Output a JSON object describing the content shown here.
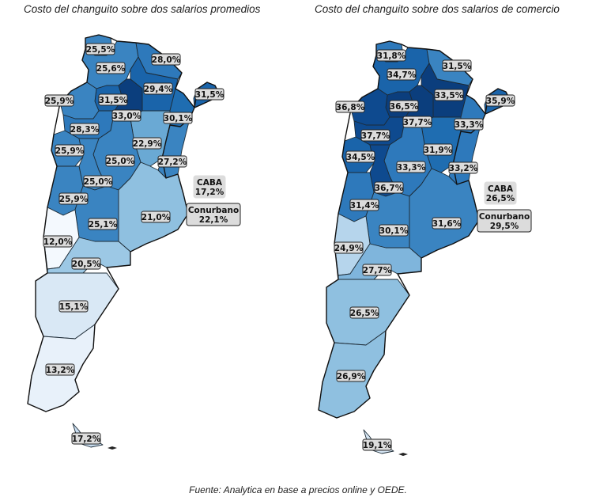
{
  "maps": [
    {
      "title": "Costo del changuito sobre dos salarios promedios",
      "labels": {
        "jujuy": "25,5%",
        "salta": "25,6%",
        "formosa": "28,0%",
        "chaco": "29,4%",
        "misiones": "31,5%",
        "tucuman": "31,5%",
        "santiago": "33,0%",
        "corrientes": "30,1%",
        "catamarca": "25,9%",
        "larioja": "28,3%",
        "sanjuan": "25,9%",
        "santafe": "22,9%",
        "cordoba": "25,0%",
        "entrerios": "27,2%",
        "sanluis": "25,0%",
        "mendoza": "25,9%",
        "lapampa": "25,1%",
        "buenosaires": "21,0%",
        "neuquen": "12,0%",
        "rionegro": "20,5%",
        "chubut": "15,1%",
        "santacruz": "13,2%",
        "tierradelfuego": "17,2%",
        "caba": "CABA\n17,2%",
        "conurbano": "Conurbano\n22,1%"
      },
      "colors": {
        "jujuy": "#3a84c1",
        "salta": "#3a84c1",
        "formosa": "#2e79bb",
        "chaco": "#1a64aa",
        "misiones": "#1a64aa",
        "tucuman": "#1a64aa",
        "santiago": "#0b3e7d",
        "corrientes": "#1f6db1",
        "catamarca": "#3a84c1",
        "larioja": "#2e79bb",
        "sanjuan": "#3a84c1",
        "santafe": "#6aa9d4",
        "cordoba": "#3a84c1",
        "entrerios": "#3a84c1",
        "sanluis": "#3a84c1",
        "mendoza": "#3a84c1",
        "lapampa": "#3a84c1",
        "buenosaires": "#8fc0e0",
        "neuquen": "#f4f9fe",
        "rionegro": "#9cc8e5",
        "chubut": "#d9e8f5",
        "santacruz": "#e8f1fa",
        "tierradelfuego": "#c9ddf0"
      }
    },
    {
      "title": "Costo del changuito sobre dos salarios de comercio",
      "labels": {
        "jujuy": "31,8%",
        "salta": "34,7%",
        "formosa": "31,5%",
        "chaco": "33,5%",
        "misiones": "35,9%",
        "tucuman": "36,5%",
        "santiago": "37,7%",
        "corrientes": "33,3%",
        "catamarca": "36,8%",
        "larioja": "37,7%",
        "sanjuan": "34,5%",
        "santafe": "31,9%",
        "cordoba": "33,3%",
        "entrerios": "33,2%",
        "sanluis": "36,7%",
        "mendoza": "31,4%",
        "lapampa": "30,1%",
        "buenosaires": "31,6%",
        "neuquen": "24,9%",
        "rionegro": "27,7%",
        "chubut": "26,5%",
        "santacruz": "26,9%",
        "tierradelfuego": "19,1%",
        "caba": "CABA\n26,5%",
        "conurbano": "Conurbano\n29,5%"
      },
      "colors": {
        "jujuy": "#2e79bb",
        "salta": "#1a64aa",
        "formosa": "#3a84c1",
        "chaco": "#0b3e7d",
        "misiones": "#1a64aa",
        "tucuman": "#0b3e7d",
        "santiago": "#0b3e7d",
        "corrientes": "#2e79bb",
        "catamarca": "#0e4a8f",
        "larioja": "#0e4a8f",
        "sanjuan": "#1a64aa",
        "santafe": "#1f6db1",
        "cordoba": "#2e79bb",
        "entrerios": "#2e79bb",
        "sanluis": "#0e4a8f",
        "mendoza": "#2e79bb",
        "lapampa": "#3a84c1",
        "buenosaires": "#3a84c1",
        "neuquen": "#b6d5ec",
        "rionegro": "#7fb5dc",
        "chubut": "#8fc0e0",
        "santacruz": "#8fc0e0",
        "tierradelfuego": "#d6e6f4"
      }
    }
  ],
  "source": "Fuente: Analytica en base a precios online y OEDE."
}
